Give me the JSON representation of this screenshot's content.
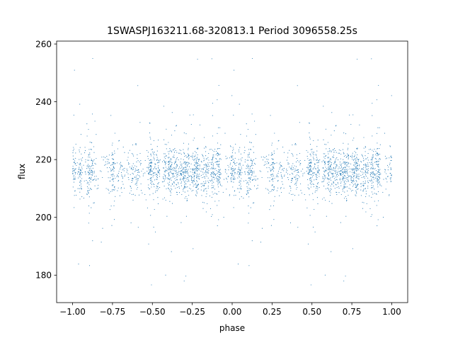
{
  "chart_data": {
    "type": "scatter",
    "title": "1SWASPJ163211.68-320813.1 Period 3096558.25s",
    "xlabel": "phase",
    "ylabel": "flux",
    "xlim": [
      -1.1,
      1.1
    ],
    "ylim": [
      170.5,
      261.0
    ],
    "xticks": [
      -1.0,
      -0.75,
      -0.5,
      -0.25,
      0.0,
      0.25,
      0.5,
      0.75,
      1.0
    ],
    "xtick_labels": [
      "−1.00",
      "−0.75",
      "−0.50",
      "−0.25",
      "0.00",
      "0.25",
      "0.50",
      "0.75",
      "1.00"
    ],
    "yticks": [
      180,
      200,
      220,
      240,
      260
    ],
    "ytick_labels": [
      "180",
      "200",
      "220",
      "240",
      "260"
    ],
    "grid": false,
    "marker_color": "#1f77b4",
    "series": [
      {
        "x_range": [
          -1.0,
          1.0
        ],
        "baseline_flux": 216,
        "typical_spread": [
          206,
          226
        ],
        "outlier_range": [
          175,
          256
        ]
      }
    ]
  }
}
